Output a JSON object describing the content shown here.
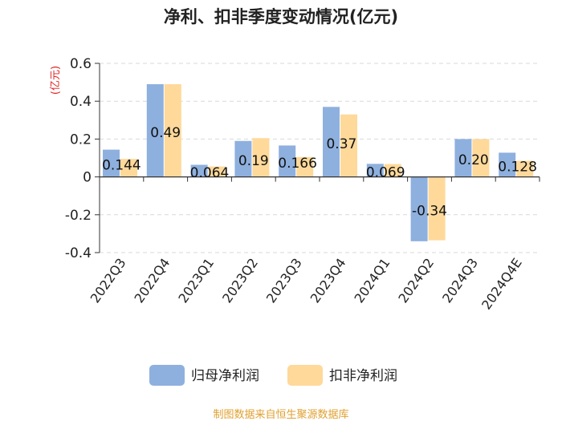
{
  "chart_data": {
    "type": "bar",
    "title": "净利、扣非季度变动情况(亿元)",
    "ylabel": "(亿元)",
    "xlabel": "",
    "categories": [
      "2022Q3",
      "2022Q4",
      "2023Q1",
      "2023Q2",
      "2023Q3",
      "2023Q4",
      "2024Q1",
      "2024Q2",
      "2024Q3",
      "2024Q4E"
    ],
    "series": [
      {
        "name": "归母净利润",
        "color": "#8eb0de",
        "values": [
          0.144,
          0.49,
          0.064,
          0.19,
          0.166,
          0.37,
          0.069,
          -0.34,
          0.2,
          0.128
        ]
      },
      {
        "name": "扣非净利润",
        "color": "#ffd99a",
        "values": [
          0.095,
          0.49,
          0.055,
          0.205,
          0.105,
          0.33,
          0.068,
          -0.335,
          0.2,
          0.085
        ]
      }
    ],
    "data_labels": [
      "0.144",
      "0.49",
      "0.064",
      "0.19",
      "0.166",
      "0.37",
      "0.069",
      "-0.34",
      "0.20",
      "0.128"
    ],
    "ylim": [
      -0.4,
      0.6
    ],
    "yticks": [
      -0.4,
      -0.2,
      0,
      0.2,
      0.4,
      0.6
    ],
    "ytick_labels": [
      "-0.4",
      "-0.2",
      "0",
      "0.2",
      "0.4",
      "0.6"
    ],
    "grid": true,
    "legend_position": "bottom-center",
    "ylabel_color": "#e02020"
  },
  "source": {
    "text": "制图数据来自恒生聚源数据库",
    "color": "#e0a030"
  }
}
